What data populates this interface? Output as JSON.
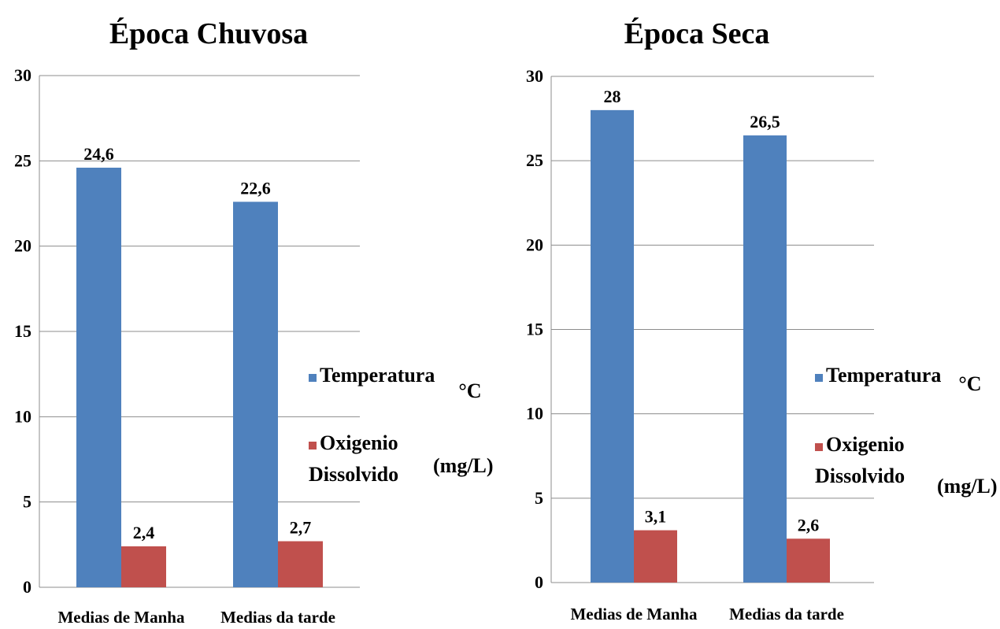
{
  "colors": {
    "temperatura": "#4f81bd",
    "oxigenio": "#c0504d"
  },
  "chart_data": [
    {
      "type": "bar",
      "title": "Época Chuvosa",
      "categories": [
        "Medias de Manha",
        "Medias da tarde"
      ],
      "series": [
        {
          "name": "Temperatura",
          "values": [
            24.6,
            22.6
          ],
          "labels": [
            "24,6",
            "22,6"
          ],
          "unit": "°C"
        },
        {
          "name": "Oxigenio Dissolvido",
          "name_lines": [
            "Oxigenio",
            "Dissolvido"
          ],
          "values": [
            2.4,
            2.7
          ],
          "labels": [
            "2,4",
            "2,7"
          ],
          "unit": "(mg/L)"
        }
      ],
      "ylim": [
        0,
        30
      ],
      "yticks": [
        0,
        5,
        10,
        15,
        20,
        25,
        30
      ],
      "grid": true,
      "legend": "right"
    },
    {
      "type": "bar",
      "title": "Época Seca",
      "categories": [
        "Medias de Manha",
        "Medias da tarde"
      ],
      "series": [
        {
          "name": "Temperatura",
          "values": [
            28,
            26.5
          ],
          "labels": [
            "28",
            "26,5"
          ],
          "unit": "°C"
        },
        {
          "name": "Oxigenio Dissolvido",
          "name_lines": [
            "Oxigenio",
            "Dissolvido"
          ],
          "values": [
            3.1,
            2.6
          ],
          "labels": [
            "3,1",
            "2,6"
          ],
          "unit": "(mg/L)"
        }
      ],
      "ylim": [
        0,
        30
      ],
      "yticks": [
        0,
        5,
        10,
        15,
        20,
        25,
        30
      ],
      "grid": true,
      "legend": "right"
    }
  ]
}
